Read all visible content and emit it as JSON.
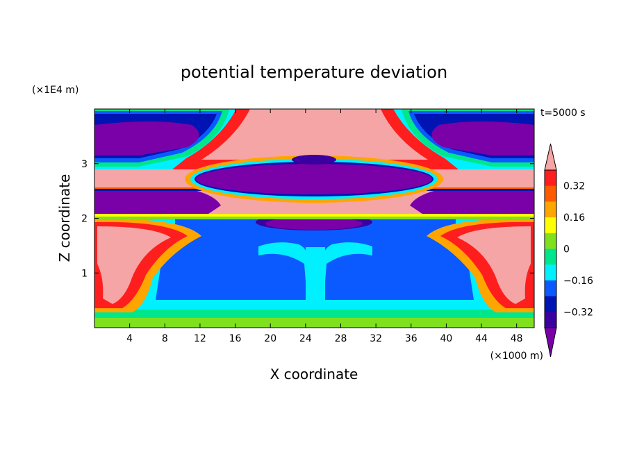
{
  "chart_data": {
    "type": "heatmap",
    "title": "potential temperature deviation",
    "xlabel": "X coordinate",
    "ylabel": "Z coordinate",
    "x_unit": "(×1000 m)",
    "y_unit": "(×1E4 m)",
    "time_label": "t=5000 s",
    "xlim": [
      0,
      50
    ],
    "ylim": [
      0,
      4
    ],
    "x_ticks": [
      4,
      8,
      12,
      16,
      20,
      24,
      28,
      32,
      36,
      40,
      44,
      48
    ],
    "y_ticks": [
      1,
      2,
      3
    ],
    "colorbar": {
      "levels": [
        -0.4,
        -0.32,
        -0.24,
        -0.16,
        -0.08,
        0,
        0.08,
        0.16,
        0.24,
        0.32,
        0.4
      ],
      "colors": [
        "#7a00a8",
        "#3a00a0",
        "#0014b4",
        "#0a5aff",
        "#00f0ff",
        "#00e68c",
        "#7fe01e",
        "#ffff00",
        "#ffa500",
        "#ff5a00",
        "#ff1e1e",
        "#f5a5a5"
      ],
      "tick_labels": [
        "0.32",
        "0.16",
        "0",
        "-0.16",
        "-0.32"
      ],
      "tick_values": [
        0.32,
        0.16,
        0,
        -0.16,
        -0.32
      ]
    }
  }
}
